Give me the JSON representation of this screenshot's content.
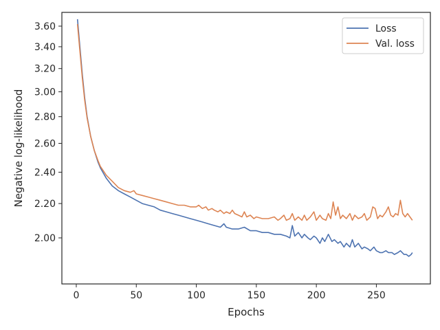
{
  "chart_data": {
    "type": "line",
    "title": "",
    "xlabel": "Epochs",
    "ylabel": "Negative log-likelihood",
    "xlim": [
      -12,
      295
    ],
    "ylim": [
      1.76,
      3.74
    ],
    "yscale": "log",
    "grid": false,
    "legend_position": "top-right",
    "x_ticks": [
      0,
      50,
      100,
      150,
      200,
      250
    ],
    "x_tick_labels": [
      "0",
      "50",
      "100",
      "150",
      "200",
      "250"
    ],
    "y_ticks": [
      2.0,
      2.2,
      2.4,
      2.6,
      2.8,
      3.0,
      3.2,
      3.4,
      3.6
    ],
    "y_tick_labels": [
      "2.00",
      "2.20",
      "2.40",
      "2.60",
      "2.80",
      "3.00",
      "3.20",
      "3.40",
      "3.60"
    ],
    "series": [
      {
        "name": "Loss",
        "color": "#4c72b0",
        "points": [
          [
            1,
            3.67
          ],
          [
            3,
            3.4
          ],
          [
            5,
            3.15
          ],
          [
            7,
            2.95
          ],
          [
            9,
            2.8
          ],
          [
            12,
            2.65
          ],
          [
            15,
            2.55
          ],
          [
            18,
            2.47
          ],
          [
            20,
            2.43
          ],
          [
            25,
            2.36
          ],
          [
            30,
            2.31
          ],
          [
            35,
            2.28
          ],
          [
            40,
            2.26
          ],
          [
            45,
            2.24
          ],
          [
            50,
            2.22
          ],
          [
            55,
            2.2
          ],
          [
            60,
            2.19
          ],
          [
            65,
            2.18
          ],
          [
            70,
            2.16
          ],
          [
            75,
            2.15
          ],
          [
            80,
            2.14
          ],
          [
            85,
            2.13
          ],
          [
            90,
            2.12
          ],
          [
            95,
            2.11
          ],
          [
            100,
            2.1
          ],
          [
            105,
            2.09
          ],
          [
            110,
            2.08
          ],
          [
            115,
            2.07
          ],
          [
            120,
            2.06
          ],
          [
            123,
            2.08
          ],
          [
            125,
            2.06
          ],
          [
            130,
            2.05
          ],
          [
            135,
            2.05
          ],
          [
            140,
            2.06
          ],
          [
            145,
            2.04
          ],
          [
            150,
            2.04
          ],
          [
            155,
            2.03
          ],
          [
            160,
            2.03
          ],
          [
            165,
            2.02
          ],
          [
            170,
            2.02
          ],
          [
            175,
            2.01
          ],
          [
            178,
            2.0
          ],
          [
            180,
            2.07
          ],
          [
            182,
            2.01
          ],
          [
            185,
            2.03
          ],
          [
            188,
            2.0
          ],
          [
            190,
            2.02
          ],
          [
            193,
            2.0
          ],
          [
            195,
            1.99
          ],
          [
            198,
            2.01
          ],
          [
            200,
            2.0
          ],
          [
            203,
            1.97
          ],
          [
            205,
            2.0
          ],
          [
            207,
            1.98
          ],
          [
            210,
            2.02
          ],
          [
            213,
            1.98
          ],
          [
            215,
            1.99
          ],
          [
            218,
            1.97
          ],
          [
            220,
            1.98
          ],
          [
            223,
            1.95
          ],
          [
            225,
            1.97
          ],
          [
            228,
            1.95
          ],
          [
            230,
            1.99
          ],
          [
            232,
            1.95
          ],
          [
            235,
            1.97
          ],
          [
            238,
            1.94
          ],
          [
            240,
            1.95
          ],
          [
            243,
            1.94
          ],
          [
            245,
            1.93
          ],
          [
            248,
            1.95
          ],
          [
            250,
            1.93
          ],
          [
            253,
            1.92
          ],
          [
            255,
            1.92
          ],
          [
            258,
            1.93
          ],
          [
            260,
            1.92
          ],
          [
            263,
            1.92
          ],
          [
            265,
            1.91
          ],
          [
            268,
            1.92
          ],
          [
            270,
            1.93
          ],
          [
            273,
            1.91
          ],
          [
            275,
            1.91
          ],
          [
            277,
            1.9
          ],
          [
            279,
            1.91
          ],
          [
            280,
            1.92
          ]
        ]
      },
      {
        "name": "Val. loss",
        "color": "#dd8452",
        "points": [
          [
            1,
            3.62
          ],
          [
            3,
            3.36
          ],
          [
            5,
            3.12
          ],
          [
            7,
            2.93
          ],
          [
            9,
            2.79
          ],
          [
            12,
            2.65
          ],
          [
            15,
            2.55
          ],
          [
            18,
            2.48
          ],
          [
            20,
            2.44
          ],
          [
            25,
            2.38
          ],
          [
            30,
            2.34
          ],
          [
            35,
            2.3
          ],
          [
            40,
            2.28
          ],
          [
            45,
            2.27
          ],
          [
            48,
            2.28
          ],
          [
            50,
            2.26
          ],
          [
            55,
            2.25
          ],
          [
            60,
            2.24
          ],
          [
            65,
            2.23
          ],
          [
            70,
            2.22
          ],
          [
            75,
            2.21
          ],
          [
            80,
            2.2
          ],
          [
            85,
            2.19
          ],
          [
            90,
            2.19
          ],
          [
            95,
            2.18
          ],
          [
            100,
            2.18
          ],
          [
            102,
            2.19
          ],
          [
            105,
            2.17
          ],
          [
            108,
            2.18
          ],
          [
            110,
            2.16
          ],
          [
            113,
            2.17
          ],
          [
            115,
            2.16
          ],
          [
            118,
            2.15
          ],
          [
            120,
            2.16
          ],
          [
            123,
            2.14
          ],
          [
            125,
            2.15
          ],
          [
            128,
            2.14
          ],
          [
            130,
            2.16
          ],
          [
            132,
            2.14
          ],
          [
            135,
            2.13
          ],
          [
            138,
            2.12
          ],
          [
            140,
            2.15
          ],
          [
            142,
            2.12
          ],
          [
            145,
            2.13
          ],
          [
            148,
            2.11
          ],
          [
            150,
            2.12
          ],
          [
            155,
            2.11
          ],
          [
            160,
            2.11
          ],
          [
            165,
            2.12
          ],
          [
            168,
            2.1
          ],
          [
            170,
            2.11
          ],
          [
            173,
            2.13
          ],
          [
            175,
            2.1
          ],
          [
            178,
            2.11
          ],
          [
            180,
            2.14
          ],
          [
            182,
            2.1
          ],
          [
            185,
            2.12
          ],
          [
            188,
            2.1
          ],
          [
            190,
            2.13
          ],
          [
            192,
            2.1
          ],
          [
            195,
            2.12
          ],
          [
            198,
            2.15
          ],
          [
            200,
            2.1
          ],
          [
            203,
            2.13
          ],
          [
            205,
            2.11
          ],
          [
            208,
            2.1
          ],
          [
            210,
            2.14
          ],
          [
            212,
            2.11
          ],
          [
            214,
            2.21
          ],
          [
            216,
            2.13
          ],
          [
            218,
            2.18
          ],
          [
            220,
            2.11
          ],
          [
            222,
            2.13
          ],
          [
            225,
            2.11
          ],
          [
            228,
            2.14
          ],
          [
            230,
            2.1
          ],
          [
            232,
            2.13
          ],
          [
            235,
            2.11
          ],
          [
            238,
            2.12
          ],
          [
            240,
            2.14
          ],
          [
            242,
            2.1
          ],
          [
            245,
            2.12
          ],
          [
            247,
            2.18
          ],
          [
            249,
            2.17
          ],
          [
            251,
            2.11
          ],
          [
            253,
            2.13
          ],
          [
            255,
            2.12
          ],
          [
            258,
            2.15
          ],
          [
            260,
            2.18
          ],
          [
            262,
            2.13
          ],
          [
            264,
            2.12
          ],
          [
            266,
            2.14
          ],
          [
            268,
            2.13
          ],
          [
            270,
            2.22
          ],
          [
            272,
            2.14
          ],
          [
            274,
            2.12
          ],
          [
            276,
            2.14
          ],
          [
            278,
            2.12
          ],
          [
            280,
            2.1
          ]
        ]
      }
    ]
  }
}
